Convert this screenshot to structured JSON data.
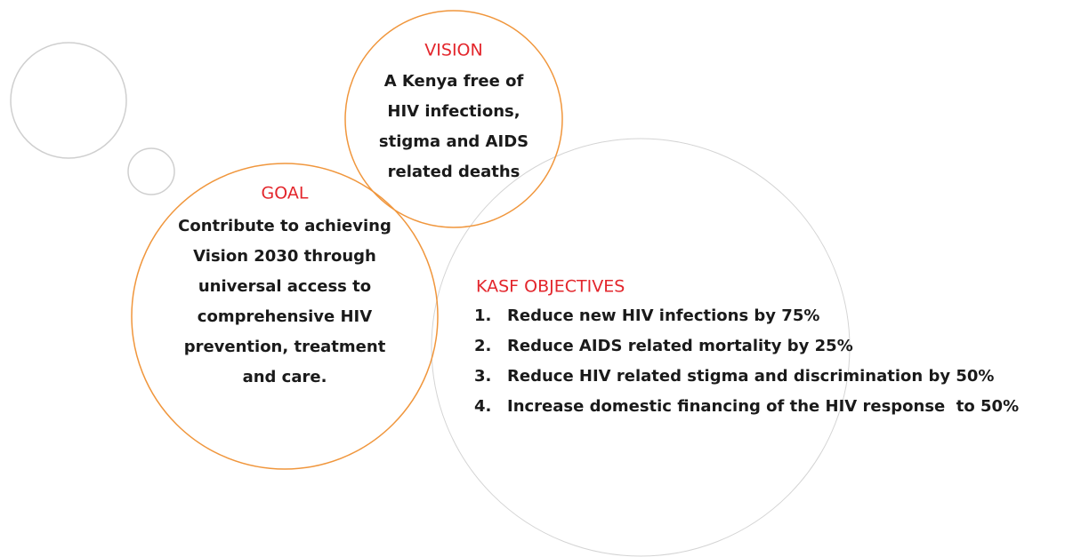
{
  "vision": {
    "title": "VISION",
    "lines": [
      "A Kenya free of",
      "HIV infections,",
      "stigma and AIDS",
      "related deaths"
    ]
  },
  "goal": {
    "title": "GOAL",
    "lines": [
      "Contribute to achieving",
      "Vision 2030 through",
      "universal access to",
      "comprehensive HIV",
      "prevention, treatment",
      "and care."
    ]
  },
  "objectives": {
    "title": "KASF OBJECTIVES",
    "items": [
      {
        "number": "1.",
        "text": "Reduce new HIV infections by 75%"
      },
      {
        "number": "2.",
        "text": "Reduce AIDS related mortality by 25%"
      },
      {
        "number": "3.",
        "text": "Reduce HIV related stigma and discrimination by 50%"
      },
      {
        "number": "4.",
        "text": "Increase domestic financing of the HIV response  to 50%"
      }
    ]
  }
}
